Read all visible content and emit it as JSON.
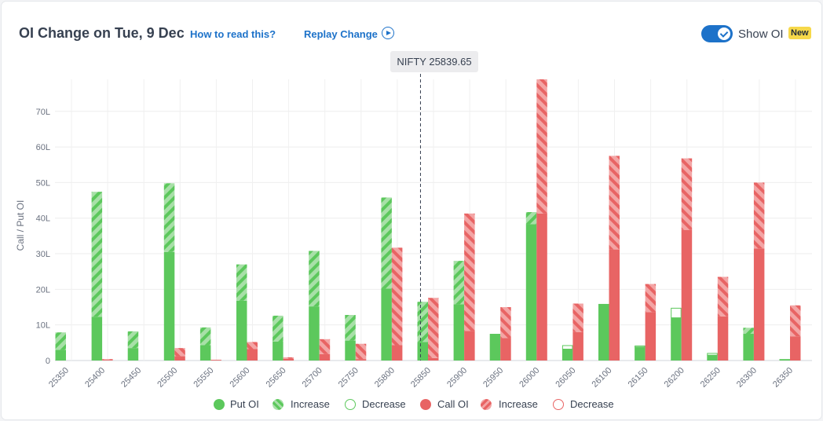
{
  "header": {
    "title": "OI Change on Tue, 9 Dec",
    "how_to_read": "How to read this?",
    "replay": "Replay Change",
    "show_oi_label": "Show OI",
    "new_badge": "New",
    "show_oi_on": true
  },
  "spot_label": "NIFTY 25839.65",
  "legend": {
    "put_oi": "Put OI",
    "put_increase": "Increase",
    "put_decrease": "Decrease",
    "call_oi": "Call OI",
    "call_increase": "Increase",
    "call_decrease": "Decrease"
  },
  "colors": {
    "put": "#5cc85c",
    "put_light": "#a8e0a8",
    "call": "#e86464",
    "call_light": "#f3a5a5",
    "accent": "#1d72c9"
  },
  "chart_data": {
    "type": "bar",
    "ylabel": "Call / Put OI",
    "ylim": [
      0,
      79
    ],
    "yticks": [
      "0",
      "10L",
      "20L",
      "30L",
      "40L",
      "50L",
      "60L",
      "70L"
    ],
    "ytick_values": [
      0,
      10,
      20,
      30,
      40,
      50,
      60,
      70
    ],
    "spot": 25839.65,
    "categories": [
      "25350",
      "25400",
      "25450",
      "25500",
      "25550",
      "25600",
      "25650",
      "25700",
      "25750",
      "25800",
      "25850",
      "25900",
      "25950",
      "26000",
      "26050",
      "26100",
      "26150",
      "26200",
      "26250",
      "26300",
      "26350"
    ],
    "series": [
      {
        "name": "Put OI",
        "values": [
          3,
          12.3,
          3.5,
          30.5,
          4.3,
          16.8,
          5.3,
          15.2,
          5.6,
          20.2,
          5.2,
          15.8,
          7.5,
          38.3,
          3.2,
          15.9,
          3.8,
          12,
          1.5,
          7.5,
          0.4
        ]
      },
      {
        "name": "Increase",
        "values": [
          4.9,
          35.1,
          4.7,
          19.3,
          5,
          10.2,
          7.3,
          15.6,
          7.2,
          25.6,
          11.3,
          12.2,
          0,
          3.4,
          0,
          0,
          0,
          0,
          0,
          1.7,
          0
        ]
      },
      {
        "name": "Decrease",
        "values": [
          0,
          0,
          0,
          0,
          0,
          0,
          0,
          0,
          0,
          0,
          0,
          0,
          0,
          0,
          1,
          0,
          0.3,
          2.7,
          0.5,
          0,
          0
        ]
      },
      {
        "name": "Call OI",
        "values": [
          0,
          0.2,
          0,
          1.2,
          0.2,
          3.2,
          0.5,
          1.8,
          0.4,
          4.3,
          0.7,
          8.3,
          6.3,
          41.3,
          8,
          31.2,
          13.6,
          36.7,
          12.4,
          31.5,
          6.8
        ]
      },
      {
        "name": "Increase",
        "values": [
          0,
          0.2,
          0,
          2.3,
          0,
          2,
          0.4,
          4.2,
          4.3,
          27.4,
          16.9,
          33,
          8.7,
          37.7,
          8,
          26.3,
          7.9,
          20.1,
          11.1,
          18.5,
          8.7
        ]
      },
      {
        "name": "Decrease",
        "values": [
          0,
          0,
          0,
          0,
          0,
          0,
          0,
          0,
          0,
          0,
          0,
          0,
          0,
          0,
          0,
          0,
          0,
          0,
          0,
          0,
          0
        ]
      }
    ]
  }
}
